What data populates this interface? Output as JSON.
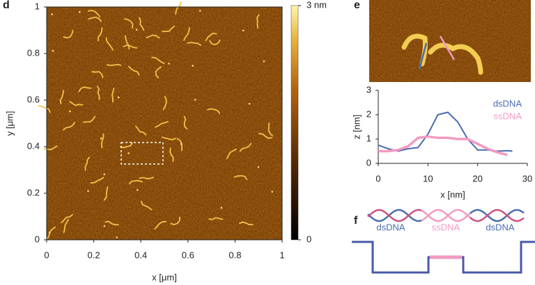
{
  "panel_labels": [
    "d",
    "e",
    "f"
  ],
  "chart_data": [
    {
      "type": "image",
      "xlabel": "x [μm]",
      "ylabel": "y [μm]",
      "xlim": [
        0,
        1
      ],
      "ylim": [
        0,
        1
      ],
      "xticks": [
        0,
        0.2,
        0.4,
        0.6,
        0.8,
        1
      ],
      "yticks": [
        0,
        0.2,
        0.4,
        0.6,
        0.8,
        1
      ],
      "colorbar": {
        "lim": [
          0,
          3
        ],
        "ticks": [
          0,
          {
            "value": 3,
            "label": "3 nm"
          }
        ]
      }
    },
    {
      "type": "line",
      "xlabel": "x [nm]",
      "ylabel": "z [nm]",
      "xlim": [
        0,
        30
      ],
      "ylim": [
        0,
        3
      ],
      "xticks": [
        0,
        10,
        20,
        30
      ],
      "yticks": [
        0,
        1,
        2,
        3
      ],
      "legend": "upper right",
      "series": [
        {
          "name": "dsDNA",
          "color": "#4a6cb0",
          "x": [
            0,
            2,
            4,
            6,
            8,
            10,
            12,
            14,
            16,
            18,
            20,
            22,
            24,
            26,
            27
          ],
          "values": [
            0.75,
            0.6,
            0.5,
            0.6,
            0.65,
            1.2,
            2.0,
            2.1,
            1.7,
            1.0,
            0.55,
            0.55,
            0.5,
            0.52,
            0.5
          ]
        },
        {
          "name": "ssDNA",
          "color": "#f29ac2",
          "x": [
            0,
            2,
            4,
            6,
            8,
            10,
            12,
            14,
            16,
            18,
            20,
            22,
            24,
            26
          ],
          "values": [
            0.5,
            0.5,
            0.55,
            0.7,
            1.05,
            1.1,
            1.05,
            1.05,
            1.0,
            1.0,
            0.8,
            0.6,
            0.45,
            0.35
          ]
        }
      ]
    }
  ],
  "diagram_labels": [
    "dsDNA",
    "ssDNA",
    "dsDNA"
  ]
}
